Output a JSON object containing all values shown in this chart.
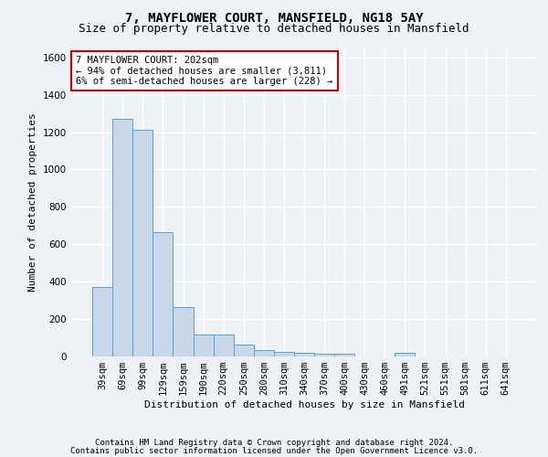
{
  "title": "7, MAYFLOWER COURT, MANSFIELD, NG18 5AY",
  "subtitle": "Size of property relative to detached houses in Mansfield",
  "xlabel": "Distribution of detached houses by size in Mansfield",
  "ylabel": "Number of detached properties",
  "categories": [
    "39sqm",
    "69sqm",
    "99sqm",
    "129sqm",
    "159sqm",
    "190sqm",
    "220sqm",
    "250sqm",
    "280sqm",
    "310sqm",
    "340sqm",
    "370sqm",
    "400sqm",
    "430sqm",
    "460sqm",
    "491sqm",
    "521sqm",
    "551sqm",
    "581sqm",
    "611sqm",
    "641sqm"
  ],
  "values": [
    370,
    1270,
    1210,
    665,
    265,
    115,
    115,
    65,
    35,
    25,
    20,
    15,
    15,
    0,
    0,
    20,
    0,
    0,
    0,
    0,
    0
  ],
  "bar_color": "#c8d8e8",
  "bar_edge_color": "#5a9fd4",
  "ylim": [
    0,
    1650
  ],
  "yticks": [
    0,
    200,
    400,
    600,
    800,
    1000,
    1200,
    1400,
    1600
  ],
  "annotation_text": "7 MAYFLOWER COURT: 202sqm\n← 94% of detached houses are smaller (3,811)\n6% of semi-detached houses are larger (228) →",
  "annotation_box_color": "#ffffff",
  "annotation_border_color": "#cc0000",
  "footer_line1": "Contains HM Land Registry data © Crown copyright and database right 2024.",
  "footer_line2": "Contains public sector information licensed under the Open Government Licence v3.0.",
  "bg_color": "#eef2f7",
  "plot_bg_color": "#eef2f7",
  "grid_color": "#ffffff",
  "title_fontsize": 10,
  "subtitle_fontsize": 9,
  "axis_label_fontsize": 8,
  "tick_fontsize": 7.5,
  "annotation_fontsize": 7.5,
  "footer_fontsize": 6.5
}
